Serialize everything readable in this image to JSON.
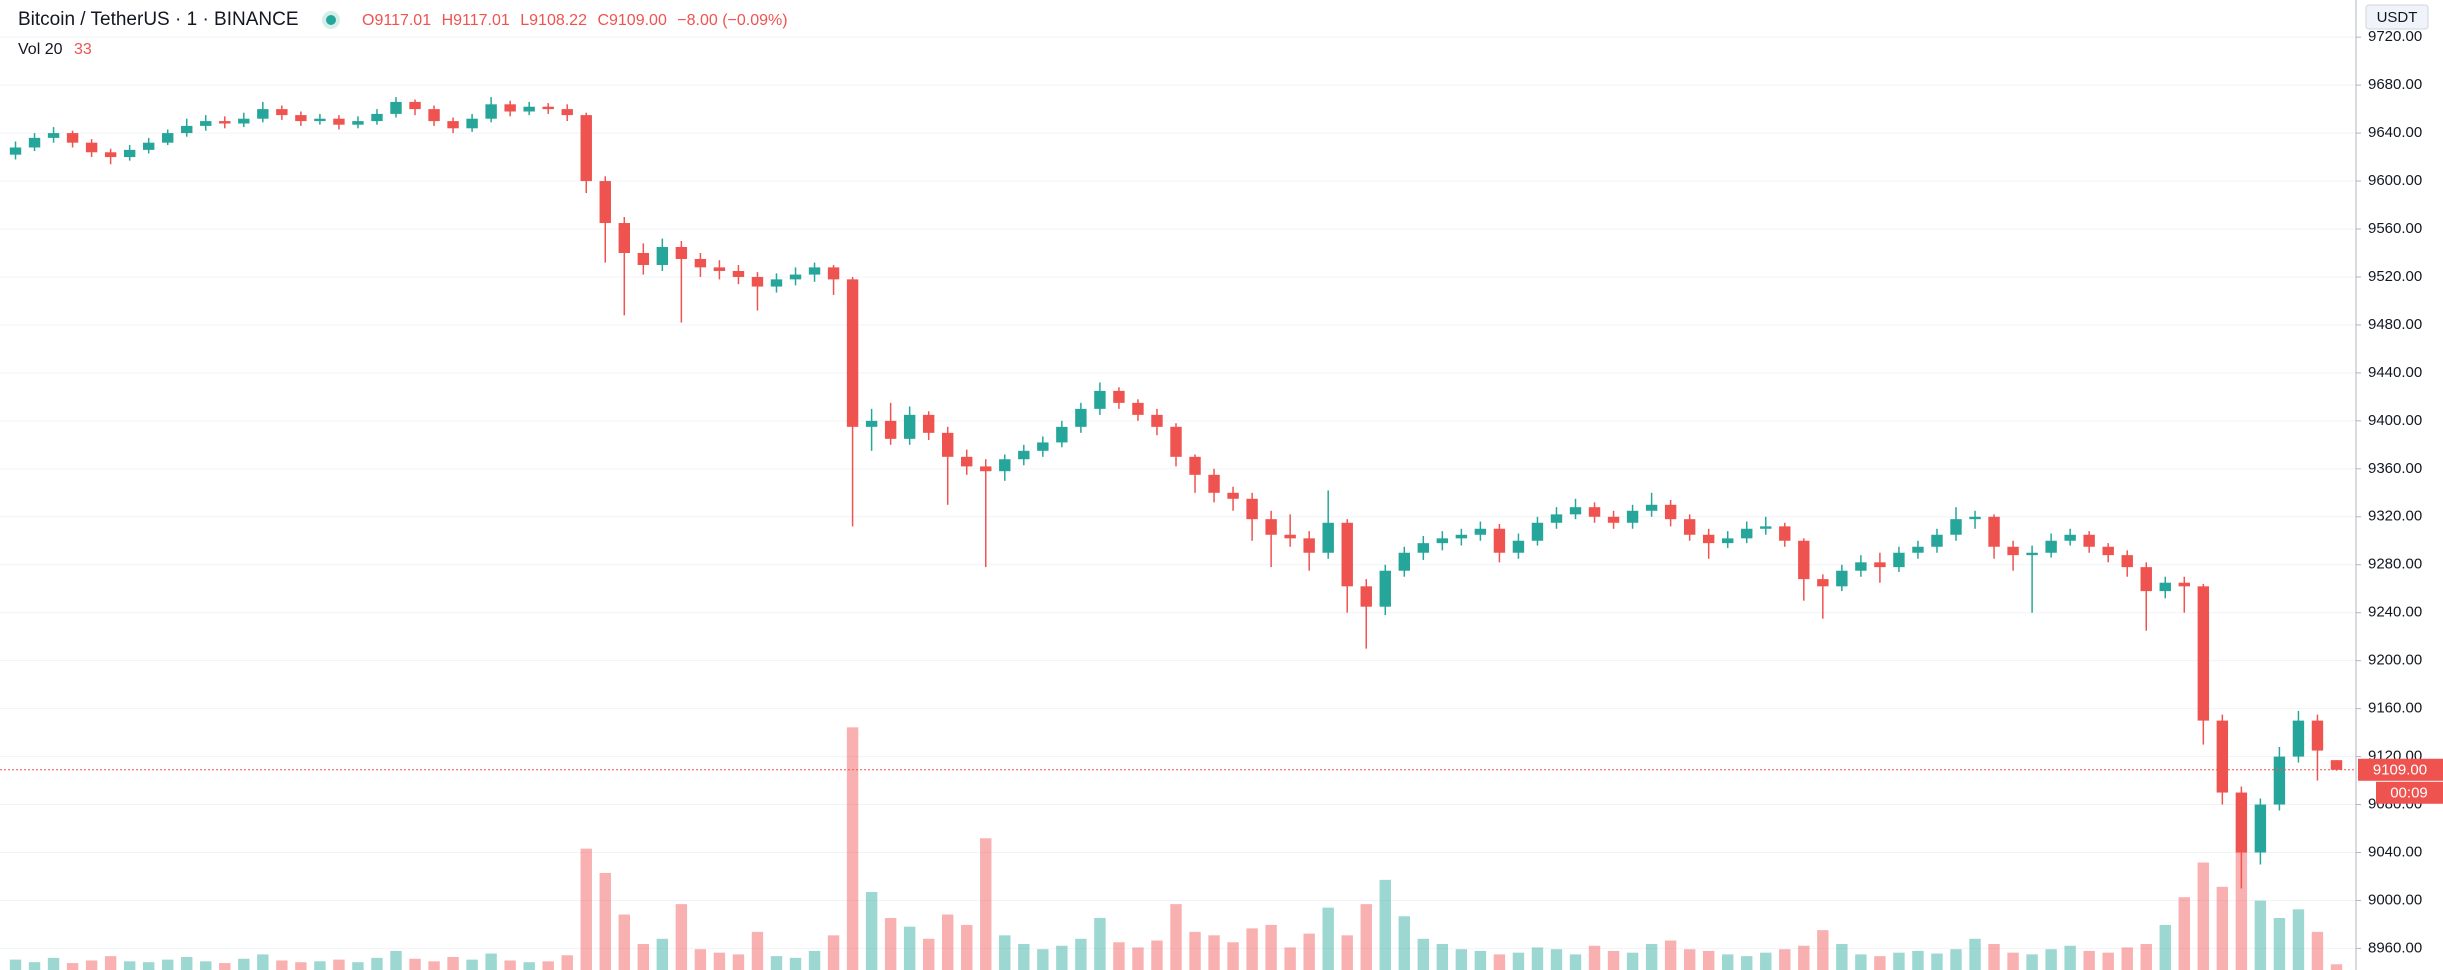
{
  "header": {
    "symbol_title": "Bitcoin / TetherUS · 1 · BINANCE",
    "ohlc": [
      {
        "key": "O",
        "value": "9117.01"
      },
      {
        "key": "H",
        "value": "9117.01"
      },
      {
        "key": "L",
        "value": "9108.22"
      },
      {
        "key": "C",
        "value": "9109.00"
      }
    ],
    "change": "−8.00 (−0.09%)"
  },
  "chart_data": {
    "type": "candlestick",
    "currency": "USDT",
    "open": [
      9622,
      9628,
      9636,
      9640,
      9632,
      9624,
      9620,
      9626,
      9632,
      9640,
      9646,
      9650,
      9648,
      9652,
      9660,
      9655,
      9650,
      9652,
      9647,
      9650,
      9656,
      9666,
      9660,
      9650,
      9644,
      9652,
      9664,
      9658,
      9662,
      9660,
      9655,
      9600,
      9565,
      9540,
      9530,
      9545,
      9535,
      9528,
      9525,
      9520,
      9512,
      9518,
      9522,
      9528,
      9518,
      9395,
      9400,
      9385,
      9405,
      9390,
      9370,
      9362,
      9358,
      9368,
      9375,
      9382,
      9395,
      9410,
      9425,
      9415,
      9405,
      9395,
      9370,
      9355,
      9340,
      9335,
      9318,
      9305,
      9302,
      9290,
      9315,
      9262,
      9245,
      9275,
      9290,
      9298,
      9302,
      9305,
      9310,
      9290,
      9300,
      9315,
      9322,
      9328,
      9320,
      9315,
      9325,
      9330,
      9318,
      9305,
      9298,
      9302,
      9310,
      9312,
      9300,
      9268,
      9262,
      9275,
      9282,
      9278,
      9290,
      9295,
      9305,
      9318,
      9320,
      9295,
      9288,
      9290,
      9300,
      9305,
      9295,
      9288,
      9278,
      9258,
      9265,
      9262,
      9150,
      9090,
      9040,
      9080,
      9120,
      9150,
      9117.01
    ],
    "high": [
      9633,
      9640,
      9645,
      9642,
      9635,
      9627,
      9630,
      9636,
      9643,
      9652,
      9655,
      9654,
      9657,
      9666,
      9663,
      9658,
      9656,
      9655,
      9654,
      9660,
      9670,
      9668,
      9663,
      9653,
      9656,
      9670,
      9667,
      9666,
      9665,
      9664,
      9657,
      9604,
      9570,
      9548,
      9552,
      9550,
      9540,
      9534,
      9530,
      9524,
      9523,
      9528,
      9532,
      9530,
      9520,
      9410,
      9415,
      9412,
      9408,
      9395,
      9376,
      9368,
      9372,
      9380,
      9387,
      9400,
      9415,
      9432,
      9428,
      9418,
      9410,
      9398,
      9372,
      9360,
      9345,
      9340,
      9325,
      9322,
      9308,
      9342,
      9318,
      9268,
      9280,
      9295,
      9304,
      9308,
      9310,
      9316,
      9314,
      9306,
      9320,
      9328,
      9335,
      9332,
      9325,
      9330,
      9340,
      9334,
      9322,
      9310,
      9308,
      9316,
      9320,
      9315,
      9302,
      9272,
      9280,
      9288,
      9290,
      9295,
      9300,
      9310,
      9328,
      9325,
      9322,
      9300,
      9296,
      9306,
      9310,
      9308,
      9298,
      9292,
      9282,
      9270,
      9270,
      9264,
      9155,
      9095,
      9085,
      9128,
      9158,
      9155,
      9117.01
    ],
    "low": [
      9618,
      9625,
      9632,
      9628,
      9620,
      9614,
      9617,
      9623,
      9630,
      9637,
      9642,
      9644,
      9645,
      9649,
      9651,
      9646,
      9647,
      9643,
      9644,
      9647,
      9653,
      9655,
      9646,
      9640,
      9641,
      9649,
      9654,
      9655,
      9656,
      9650,
      9590,
      9532,
      9488,
      9522,
      9525,
      9482,
      9520,
      9518,
      9514,
      9492,
      9507,
      9513,
      9516,
      9505,
      9312,
      9375,
      9380,
      9380,
      9384,
      9330,
      9355,
      9278,
      9350,
      9363,
      9370,
      9378,
      9390,
      9405,
      9410,
      9400,
      9388,
      9362,
      9340,
      9332,
      9325,
      9300,
      9278,
      9295,
      9275,
      9285,
      9240,
      9210,
      9238,
      9270,
      9284,
      9292,
      9296,
      9300,
      9282,
      9285,
      9296,
      9310,
      9318,
      9315,
      9310,
      9310,
      9320,
      9312,
      9300,
      9285,
      9294,
      9298,
      9305,
      9295,
      9250,
      9235,
      9258,
      9270,
      9265,
      9274,
      9285,
      9290,
      9300,
      9310,
      9285,
      9275,
      9240,
      9286,
      9296,
      9290,
      9282,
      9270,
      9225,
      9252,
      9240,
      9130,
      9080,
      9010,
      9030,
      9075,
      9115,
      9100,
      9108.22
    ],
    "close": [
      9628,
      9636,
      9640,
      9632,
      9624,
      9620,
      9626,
      9632,
      9640,
      9646,
      9650,
      9648,
      9652,
      9660,
      9655,
      9650,
      9652,
      9647,
      9650,
      9656,
      9666,
      9660,
      9650,
      9644,
      9652,
      9664,
      9658,
      9662,
      9660,
      9655,
      9600,
      9565,
      9540,
      9530,
      9545,
      9535,
      9528,
      9525,
      9520,
      9512,
      9518,
      9522,
      9528,
      9518,
      9395,
      9400,
      9385,
      9405,
      9390,
      9370,
      9362,
      9358,
      9368,
      9375,
      9382,
      9395,
      9410,
      9425,
      9415,
      9405,
      9395,
      9370,
      9355,
      9340,
      9335,
      9318,
      9305,
      9302,
      9290,
      9315,
      9262,
      9245,
      9275,
      9290,
      9298,
      9302,
      9305,
      9310,
      9290,
      9300,
      9315,
      9322,
      9328,
      9320,
      9315,
      9325,
      9330,
      9318,
      9305,
      9298,
      9302,
      9310,
      9312,
      9300,
      9268,
      9262,
      9275,
      9282,
      9278,
      9290,
      9295,
      9305,
      9318,
      9320,
      9295,
      9288,
      9290,
      9300,
      9305,
      9295,
      9288,
      9278,
      9258,
      9265,
      9262,
      9150,
      9090,
      9040,
      9080,
      9120,
      9150,
      9125,
      9109
    ],
    "up_color": "#26a69a",
    "down_color": "#ef5350",
    "ylim": [
      8942,
      9751
    ],
    "yticks": [
      {
        "value": 8960,
        "label": "8960.00"
      },
      {
        "value": 9000,
        "label": "9000.00"
      },
      {
        "value": 9040,
        "label": "9040.00"
      },
      {
        "value": 9080,
        "label": "9080.00"
      },
      {
        "value": 9120,
        "label": "9120.00"
      },
      {
        "value": 9160,
        "label": "9160.00"
      },
      {
        "value": 9200,
        "label": "9200.00"
      },
      {
        "value": 9240,
        "label": "9240.00"
      },
      {
        "value": 9280,
        "label": "9280.00"
      },
      {
        "value": 9320,
        "label": "9320.00"
      },
      {
        "value": 9360,
        "label": "9360.00"
      },
      {
        "value": 9400,
        "label": "9400.00"
      },
      {
        "value": 9440,
        "label": "9440.00"
      },
      {
        "value": 9480,
        "label": "9480.00"
      },
      {
        "value": 9520,
        "label": "9520.00"
      },
      {
        "value": 9560,
        "label": "9560.00"
      },
      {
        "value": 9600,
        "label": "9600.00"
      },
      {
        "value": 9640,
        "label": "9640.00"
      },
      {
        "value": 9680,
        "label": "9680.00"
      },
      {
        "value": 9720,
        "label": "9720.00"
      }
    ],
    "grid": true,
    "volume": {
      "name": "Vol 20",
      "last_label": "33",
      "ylim": [
        0,
        1500
      ],
      "values": [
        60,
        45,
        70,
        40,
        55,
        80,
        50,
        45,
        60,
        75,
        50,
        40,
        65,
        90,
        55,
        45,
        50,
        60,
        45,
        70,
        110,
        65,
        50,
        75,
        60,
        95,
        55,
        45,
        50,
        85,
        700,
        560,
        320,
        150,
        180,
        380,
        120,
        100,
        90,
        220,
        80,
        70,
        110,
        200,
        1400,
        450,
        300,
        250,
        180,
        320,
        260,
        760,
        200,
        150,
        120,
        140,
        180,
        300,
        160,
        130,
        170,
        380,
        220,
        200,
        160,
        240,
        260,
        130,
        210,
        360,
        200,
        380,
        520,
        310,
        180,
        150,
        120,
        110,
        90,
        100,
        130,
        120,
        90,
        140,
        110,
        100,
        150,
        170,
        120,
        110,
        90,
        80,
        100,
        120,
        140,
        230,
        150,
        90,
        80,
        100,
        110,
        95,
        120,
        180,
        150,
        100,
        90,
        120,
        140,
        110,
        100,
        130,
        150,
        260,
        420,
        620,
        480,
        680,
        400,
        300,
        350,
        220,
        33
      ]
    },
    "last_price": {
      "value": 9109,
      "label": "9109.00"
    },
    "countdown": "00:09"
  }
}
